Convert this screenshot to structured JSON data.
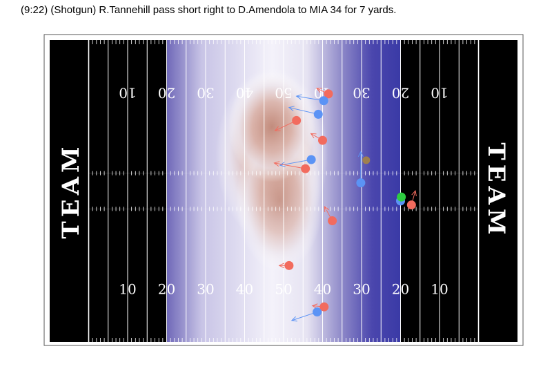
{
  "play": {
    "description": "(9:22) (Shotgun) R.Tannehill pass short right to D.Amendola to MIA 34 for 7 yards."
  },
  "colors": {
    "field": "#000000",
    "lines": "#ffffff",
    "frame": "#555555",
    "offense": "#f26b5e",
    "defense": "#5b93f5",
    "ball": "#9e8050",
    "highlight": "#2ecc40",
    "first_down_band": "#3a3aa6",
    "heat_low": "#ffffff",
    "heat_mid": "#a8a4d6",
    "heat_high": "#c08070"
  },
  "chart_data": {
    "type": "scatter",
    "title": "",
    "xlabel": "",
    "ylabel": "",
    "x_axis": "field x (yards, 0-120 incl. end zones)",
    "y_axis": "field y (yards, 0-53.3)",
    "xlim": [
      0,
      120
    ],
    "ylim": [
      0,
      53.3
    ],
    "endzone_labels": [
      "TEAM",
      "TEAM"
    ],
    "yard_numbers": [
      "10",
      "20",
      "30",
      "40",
      "50",
      "40",
      "30",
      "20",
      "10"
    ],
    "line_of_scrimmage_x": 69,
    "first_down_x": 90,
    "heat_shading_x_range": [
      30,
      90
    ],
    "players": [
      {
        "team": "offense",
        "x": 71.5,
        "y": 43.8,
        "dx": -3.0,
        "dy": 1.0
      },
      {
        "team": "defense",
        "x": 70.3,
        "y": 42.6,
        "dx": -7.0,
        "dy": 0.8
      },
      {
        "team": "defense",
        "x": 68.9,
        "y": 40.2,
        "dx": -7.5,
        "dy": 1.2
      },
      {
        "team": "offense",
        "x": 63.3,
        "y": 39.1,
        "dx": -5.5,
        "dy": -1.8
      },
      {
        "team": "offense",
        "x": 70.0,
        "y": 35.6,
        "dx": -3.0,
        "dy": 1.2
      },
      {
        "team": "defense",
        "x": 67.1,
        "y": 32.2,
        "dx": -8.0,
        "dy": -1.0
      },
      {
        "team": "offense",
        "x": 65.6,
        "y": 30.6,
        "dx": -8.0,
        "dy": 1.0
      },
      {
        "team": "ball",
        "x": 81.2,
        "y": 32.1,
        "dx": 0,
        "dy": 0
      },
      {
        "team": "defense",
        "x": 79.8,
        "y": 28.1,
        "dx": 0,
        "dy": 5.5
      },
      {
        "team": "defense",
        "x": 90.0,
        "y": 24.9,
        "dx": 0,
        "dy": 0
      },
      {
        "team": "highlight",
        "x": 90.2,
        "y": 25.6,
        "dx": 0,
        "dy": 0
      },
      {
        "team": "offense",
        "x": 92.8,
        "y": 24.2,
        "dx": 1.0,
        "dy": 2.5
      },
      {
        "team": "offense",
        "x": 72.5,
        "y": 21.4,
        "dx": -2.0,
        "dy": 2.5
      },
      {
        "team": "offense",
        "x": 61.4,
        "y": 13.5,
        "dx": -2.5,
        "dy": 0
      },
      {
        "team": "offense",
        "x": 70.4,
        "y": 6.2,
        "dx": -3.0,
        "dy": 0.2
      },
      {
        "team": "defense",
        "x": 68.6,
        "y": 5.3,
        "dx": -6.5,
        "dy": -1.5
      }
    ],
    "heat_blobs": [
      {
        "x": 57,
        "y": 33,
        "rx": 9,
        "ry": 11,
        "level": 3
      },
      {
        "x": 59,
        "y": 25,
        "rx": 7,
        "ry": 9,
        "level": 2
      },
      {
        "x": 57,
        "y": 38,
        "rx": 7,
        "ry": 7,
        "level": 3
      }
    ]
  }
}
